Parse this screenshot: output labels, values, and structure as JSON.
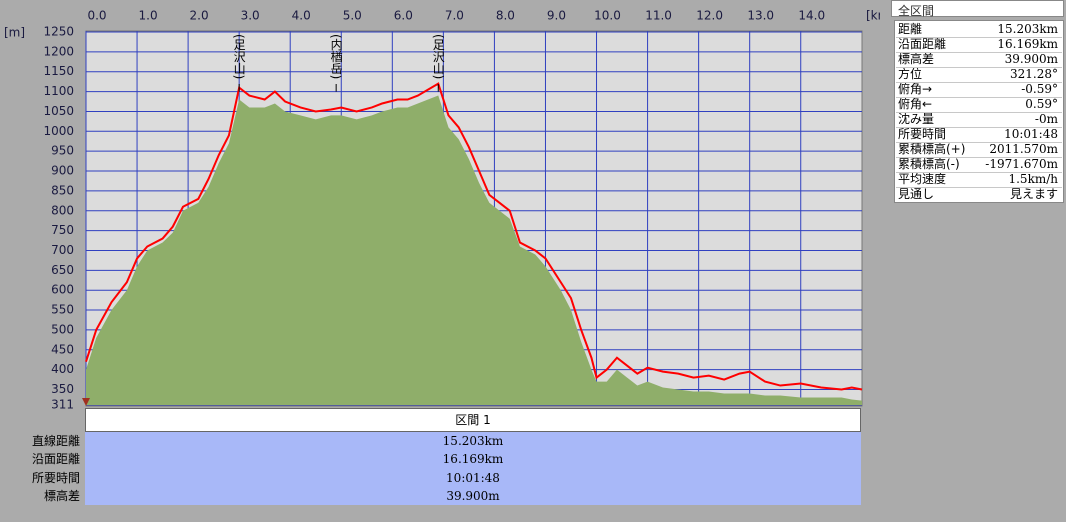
{
  "chart_data": {
    "type": "area",
    "x_unit": "[km]",
    "y_unit": "[m]",
    "x": [
      0,
      0.2,
      0.5,
      0.8,
      1.0,
      1.2,
      1.5,
      1.7,
      1.9,
      2.2,
      2.4,
      2.6,
      2.8,
      3.0,
      3.2,
      3.5,
      3.7,
      3.9,
      4.2,
      4.5,
      4.8,
      5.0,
      5.3,
      5.6,
      5.8,
      6.1,
      6.3,
      6.5,
      6.9,
      7.1,
      7.3,
      7.5,
      7.7,
      7.9,
      8.1,
      8.3,
      8.5,
      8.8,
      9.0,
      9.3,
      9.5,
      9.7,
      9.9,
      10.0,
      10.2,
      10.4,
      10.6,
      10.8,
      11.0,
      11.3,
      11.6,
      11.9,
      12.2,
      12.5,
      12.8,
      13.0,
      13.3,
      13.6,
      14.0,
      14.4,
      14.8,
      15.0,
      15.2
    ],
    "series": [
      {
        "kind": "area",
        "color": "#8fae6a",
        "values": [
          400,
          480,
          550,
          600,
          660,
          700,
          720,
          745,
          800,
          820,
          860,
          920,
          970,
          1080,
          1060,
          1060,
          1070,
          1050,
          1040,
          1030,
          1040,
          1040,
          1030,
          1040,
          1050,
          1060,
          1060,
          1070,
          1090,
          1010,
          980,
          930,
          870,
          820,
          800,
          780,
          710,
          690,
          660,
          600,
          550,
          470,
          400,
          370,
          370,
          400,
          380,
          360,
          370,
          355,
          350,
          345,
          345,
          340,
          340,
          340,
          335,
          335,
          330,
          330,
          330,
          325,
          322
        ]
      },
      {
        "kind": "line",
        "color": "#ff0000",
        "values": [
          420,
          500,
          570,
          620,
          680,
          710,
          730,
          760,
          810,
          830,
          880,
          940,
          990,
          1110,
          1090,
          1080,
          1100,
          1075,
          1060,
          1050,
          1055,
          1060,
          1050,
          1060,
          1070,
          1080,
          1080,
          1090,
          1120,
          1040,
          1010,
          960,
          900,
          840,
          820,
          800,
          720,
          700,
          680,
          620,
          580,
          500,
          430,
          380,
          400,
          430,
          410,
          390,
          405,
          395,
          390,
          380,
          385,
          375,
          390,
          395,
          370,
          360,
          365,
          355,
          350,
          355,
          350
        ]
      }
    ],
    "annotations": [
      {
        "x": 3.0,
        "label": "(足沢山)"
      },
      {
        "x": 4.9,
        "label": "(内楢岳)"
      },
      {
        "x": 6.9,
        "label": "(足沢山)"
      }
    ],
    "xlim": [
      0,
      15.2
    ],
    "ylim": [
      311,
      1250
    ],
    "xticks": [
      {
        "value": 0,
        "label": "0.0"
      },
      {
        "value": 1,
        "label": "1.0"
      },
      {
        "value": 2,
        "label": "2.0"
      },
      {
        "value": 3,
        "label": "3.0"
      },
      {
        "value": 4,
        "label": "4.0"
      },
      {
        "value": 5,
        "label": "5.0"
      },
      {
        "value": 6,
        "label": "6.0"
      },
      {
        "value": 7,
        "label": "7.0"
      },
      {
        "value": 8,
        "label": "8.0"
      },
      {
        "value": 9,
        "label": "9.0"
      },
      {
        "value": 10,
        "label": "10.0"
      },
      {
        "value": 11,
        "label": "11.0"
      },
      {
        "value": 12,
        "label": "12.0"
      },
      {
        "value": 13,
        "label": "13.0"
      },
      {
        "value": 14,
        "label": "14.0"
      }
    ],
    "yticks": [
      311,
      350,
      400,
      450,
      500,
      550,
      600,
      650,
      700,
      750,
      800,
      850,
      900,
      950,
      1000,
      1050,
      1100,
      1150,
      1200,
      1250
    ],
    "grid": true
  },
  "info_panel": {
    "title": "全区間",
    "rows": [
      [
        "距離",
        "15.203km"
      ],
      [
        "沿面距離",
        "16.169km"
      ],
      [
        "標高差",
        "39.900m"
      ],
      [
        "方位",
        "321.28°"
      ],
      [
        "俯角→",
        "-0.59°"
      ],
      [
        "俯角←",
        "0.59°"
      ],
      [
        "沈み量",
        "-0m"
      ],
      [
        "所要時間",
        "10:01:48"
      ],
      [
        "累積標高(+)",
        "2011.570m"
      ],
      [
        "累積標高(-)",
        "-1971.670m"
      ],
      [
        "平均速度",
        "1.5km/h"
      ],
      [
        "見通し",
        "見えます"
      ]
    ]
  },
  "section_table": {
    "header": "区間 1",
    "rows": [
      [
        "直線距離",
        "15.203km"
      ],
      [
        "沿面距離",
        "16.169km"
      ],
      [
        "所要時間",
        "10:01:48"
      ],
      [
        "標高差",
        "39.900m"
      ]
    ]
  }
}
